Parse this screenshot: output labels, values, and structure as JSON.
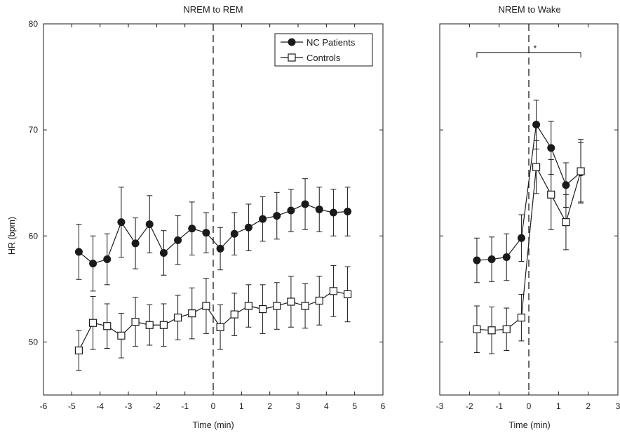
{
  "chart_data": [
    {
      "type": "line",
      "title": "NREM to REM",
      "xlabel": "Time (min)",
      "ylabel": "HR (bpm)",
      "xlim": [
        -6,
        6
      ],
      "ylim": [
        45,
        80
      ],
      "xticks": [
        "-6",
        "-5",
        "-4",
        "-3",
        "-2",
        "-1",
        "0",
        "1",
        "2",
        "3",
        "4",
        "5",
        "6"
      ],
      "yticks": [
        "50",
        "60",
        "70",
        "80"
      ],
      "legend": {
        "position": "top-right",
        "entries": [
          "NC Patients",
          "Controls"
        ]
      },
      "vline_x": 0,
      "x": [
        -4.75,
        -4.25,
        -3.75,
        -3.25,
        -2.75,
        -2.25,
        -1.75,
        -1.25,
        -0.75,
        -0.25,
        0.25,
        0.75,
        1.25,
        1.75,
        2.25,
        2.75,
        3.25,
        3.75,
        4.25,
        4.75
      ],
      "series": [
        {
          "name": "NC Patients",
          "marker": "filled-circle",
          "values": [
            58.5,
            57.4,
            57.8,
            61.3,
            59.3,
            61.1,
            58.4,
            59.6,
            60.7,
            60.3,
            58.8,
            60.2,
            60.8,
            61.6,
            61.9,
            62.4,
            63.0,
            62.5,
            62.2,
            62.3
          ],
          "errors": [
            2.6,
            2.6,
            2.4,
            3.3,
            2.4,
            2.7,
            2.1,
            2.3,
            2.5,
            1.9,
            2.0,
            2.0,
            2.2,
            2.1,
            2.2,
            2.0,
            2.4,
            2.1,
            2.2,
            2.3
          ]
        },
        {
          "name": "Controls",
          "marker": "open-square",
          "values": [
            49.2,
            51.8,
            51.5,
            50.6,
            51.9,
            51.6,
            51.6,
            52.3,
            52.7,
            53.4,
            51.4,
            52.6,
            53.4,
            53.1,
            53.4,
            53.8,
            53.4,
            53.9,
            54.8,
            54.5
          ],
          "errors": [
            1.9,
            2.5,
            2.1,
            2.1,
            2.3,
            1.9,
            2.0,
            2.1,
            2.4,
            2.6,
            2.1,
            2.0,
            2.0,
            2.3,
            2.2,
            2.4,
            2.1,
            2.3,
            2.4,
            2.6
          ]
        }
      ]
    },
    {
      "type": "line",
      "title": "NREM to Wake",
      "xlabel": "Time (min)",
      "ylabel": "",
      "xlim": [
        -3,
        3
      ],
      "ylim": [
        45,
        80
      ],
      "xticks": [
        "-3",
        "-2",
        "-1",
        "0",
        "1",
        "2",
        "3"
      ],
      "vline_x": 0,
      "significance": {
        "label": "*",
        "from": -1.75,
        "to": 1.75,
        "y": 77.3
      },
      "x": [
        -1.75,
        -1.25,
        -0.75,
        -0.25,
        0.25,
        0.75,
        1.25,
        1.75
      ],
      "series": [
        {
          "name": "NC Patients",
          "marker": "filled-circle",
          "values": [
            57.7,
            57.8,
            58.0,
            59.8,
            70.5,
            68.3,
            64.8,
            66.0
          ],
          "errors": [
            2.1,
            2.1,
            2.2,
            2.2,
            2.3,
            2.5,
            2.1,
            2.8
          ]
        },
        {
          "name": "Controls",
          "marker": "open-square",
          "values": [
            51.2,
            51.1,
            51.2,
            52.3,
            66.5,
            63.9,
            61.3,
            66.1
          ],
          "errors": [
            2.2,
            2.2,
            2.0,
            2.2,
            2.5,
            3.3,
            2.6,
            3.0
          ]
        }
      ]
    }
  ]
}
